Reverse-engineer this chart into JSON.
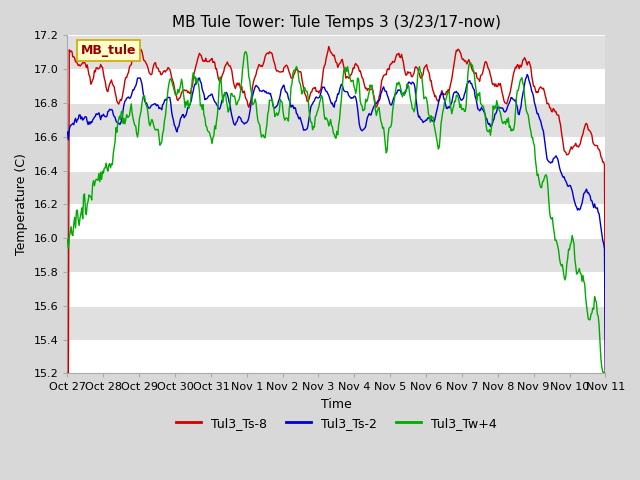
{
  "title": "MB Tule Tower: Tule Temps 3 (3/23/17-now)",
  "xlabel": "Time",
  "ylabel": "Temperature (C)",
  "ylim": [
    15.2,
    17.2
  ],
  "yticks": [
    15.2,
    15.4,
    15.6,
    15.8,
    16.0,
    16.2,
    16.4,
    16.6,
    16.8,
    17.0,
    17.2
  ],
  "xtick_labels": [
    "Oct 27",
    "Oct 28",
    "Oct 29",
    "Oct 30",
    "Oct 31",
    "Nov 1",
    "Nov 2",
    "Nov 3",
    "Nov 4",
    "Nov 5",
    "Nov 6",
    "Nov 7",
    "Nov 8",
    "Nov 9",
    "Nov 10",
    "Nov 11"
  ],
  "line_colors": {
    "Tul3_Ts-8": "#cc0000",
    "Tul3_Ts-2": "#0000cc",
    "Tul3_Tw+4": "#00aa00"
  },
  "line_width": 1.0,
  "bg_color": "#d8d8d8",
  "plot_bg_color": "#e0e0e0",
  "legend_box_color": "#ffffcc",
  "legend_box_edge": "#ccaa00",
  "legend_label_color": "#990000",
  "inset_label": "MB_tule",
  "grid_color": "#ffffff",
  "title_fontsize": 11,
  "axis_fontsize": 9,
  "tick_fontsize": 8,
  "legend_fontsize": 9,
  "n_points": 600
}
